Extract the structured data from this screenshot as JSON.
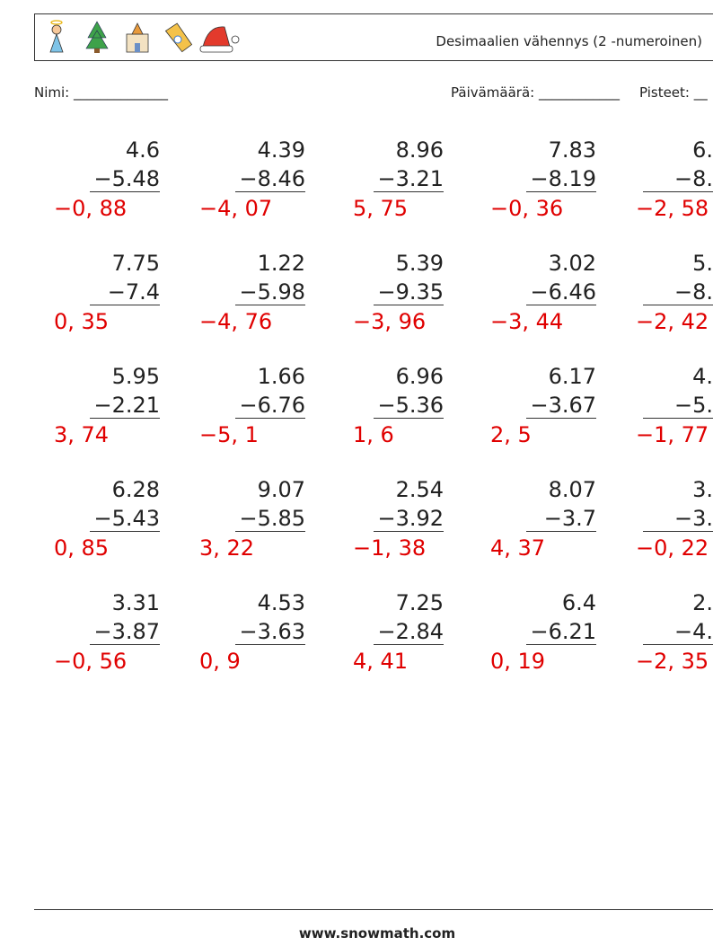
{
  "header": {
    "title": "Desimaalien vähennys (2 -numeroinen)"
  },
  "fields": {
    "name": "Nimi: ______________",
    "date": "Päivämäärä: ____________",
    "score": "Pisteet: __"
  },
  "problems": [
    {
      "a": "4.6",
      "b": "−5.48",
      "answer": "−0, 88"
    },
    {
      "a": "4.39",
      "b": "−8.46",
      "answer": "−4, 07"
    },
    {
      "a": "8.96",
      "b": "−3.21",
      "answer": "5, 75"
    },
    {
      "a": "7.83",
      "b": "−8.19",
      "answer": "−0, 36"
    },
    {
      "a": "6.",
      "b": "−8.",
      "answer": "−2, 58"
    },
    {
      "a": "7.75",
      "b": "−7.4",
      "answer": "0, 35"
    },
    {
      "a": "1.22",
      "b": "−5.98",
      "answer": "−4, 76"
    },
    {
      "a": "5.39",
      "b": "−9.35",
      "answer": "−3, 96"
    },
    {
      "a": "3.02",
      "b": "−6.46",
      "answer": "−3, 44"
    },
    {
      "a": "5.",
      "b": "−8.",
      "answer": "−2, 42"
    },
    {
      "a": "5.95",
      "b": "−2.21",
      "answer": "3, 74"
    },
    {
      "a": "1.66",
      "b": "−6.76",
      "answer": "−5, 1"
    },
    {
      "a": "6.96",
      "b": "−5.36",
      "answer": "1, 6"
    },
    {
      "a": "6.17",
      "b": "−3.67",
      "answer": "2, 5"
    },
    {
      "a": "4.",
      "b": "−5.",
      "answer": "−1, 77"
    },
    {
      "a": "6.28",
      "b": "−5.43",
      "answer": "0, 85"
    },
    {
      "a": "9.07",
      "b": "−5.85",
      "answer": "3, 22"
    },
    {
      "a": "2.54",
      "b": "−3.92",
      "answer": "−1, 38"
    },
    {
      "a": "8.07",
      "b": "−3.7",
      "answer": "4, 37"
    },
    {
      "a": "3.",
      "b": "−3.",
      "answer": "−0, 22"
    },
    {
      "a": "3.31",
      "b": "−3.87",
      "answer": "−0, 56"
    },
    {
      "a": "4.53",
      "b": "−3.63",
      "answer": "0, 9"
    },
    {
      "a": "7.25",
      "b": "−2.84",
      "answer": "4, 41"
    },
    {
      "a": "6.4",
      "b": "−6.21",
      "answer": "0, 19"
    },
    {
      "a": "2.",
      "b": "−4.",
      "answer": "−2, 35"
    }
  ],
  "footer": "www.snowmath.com"
}
